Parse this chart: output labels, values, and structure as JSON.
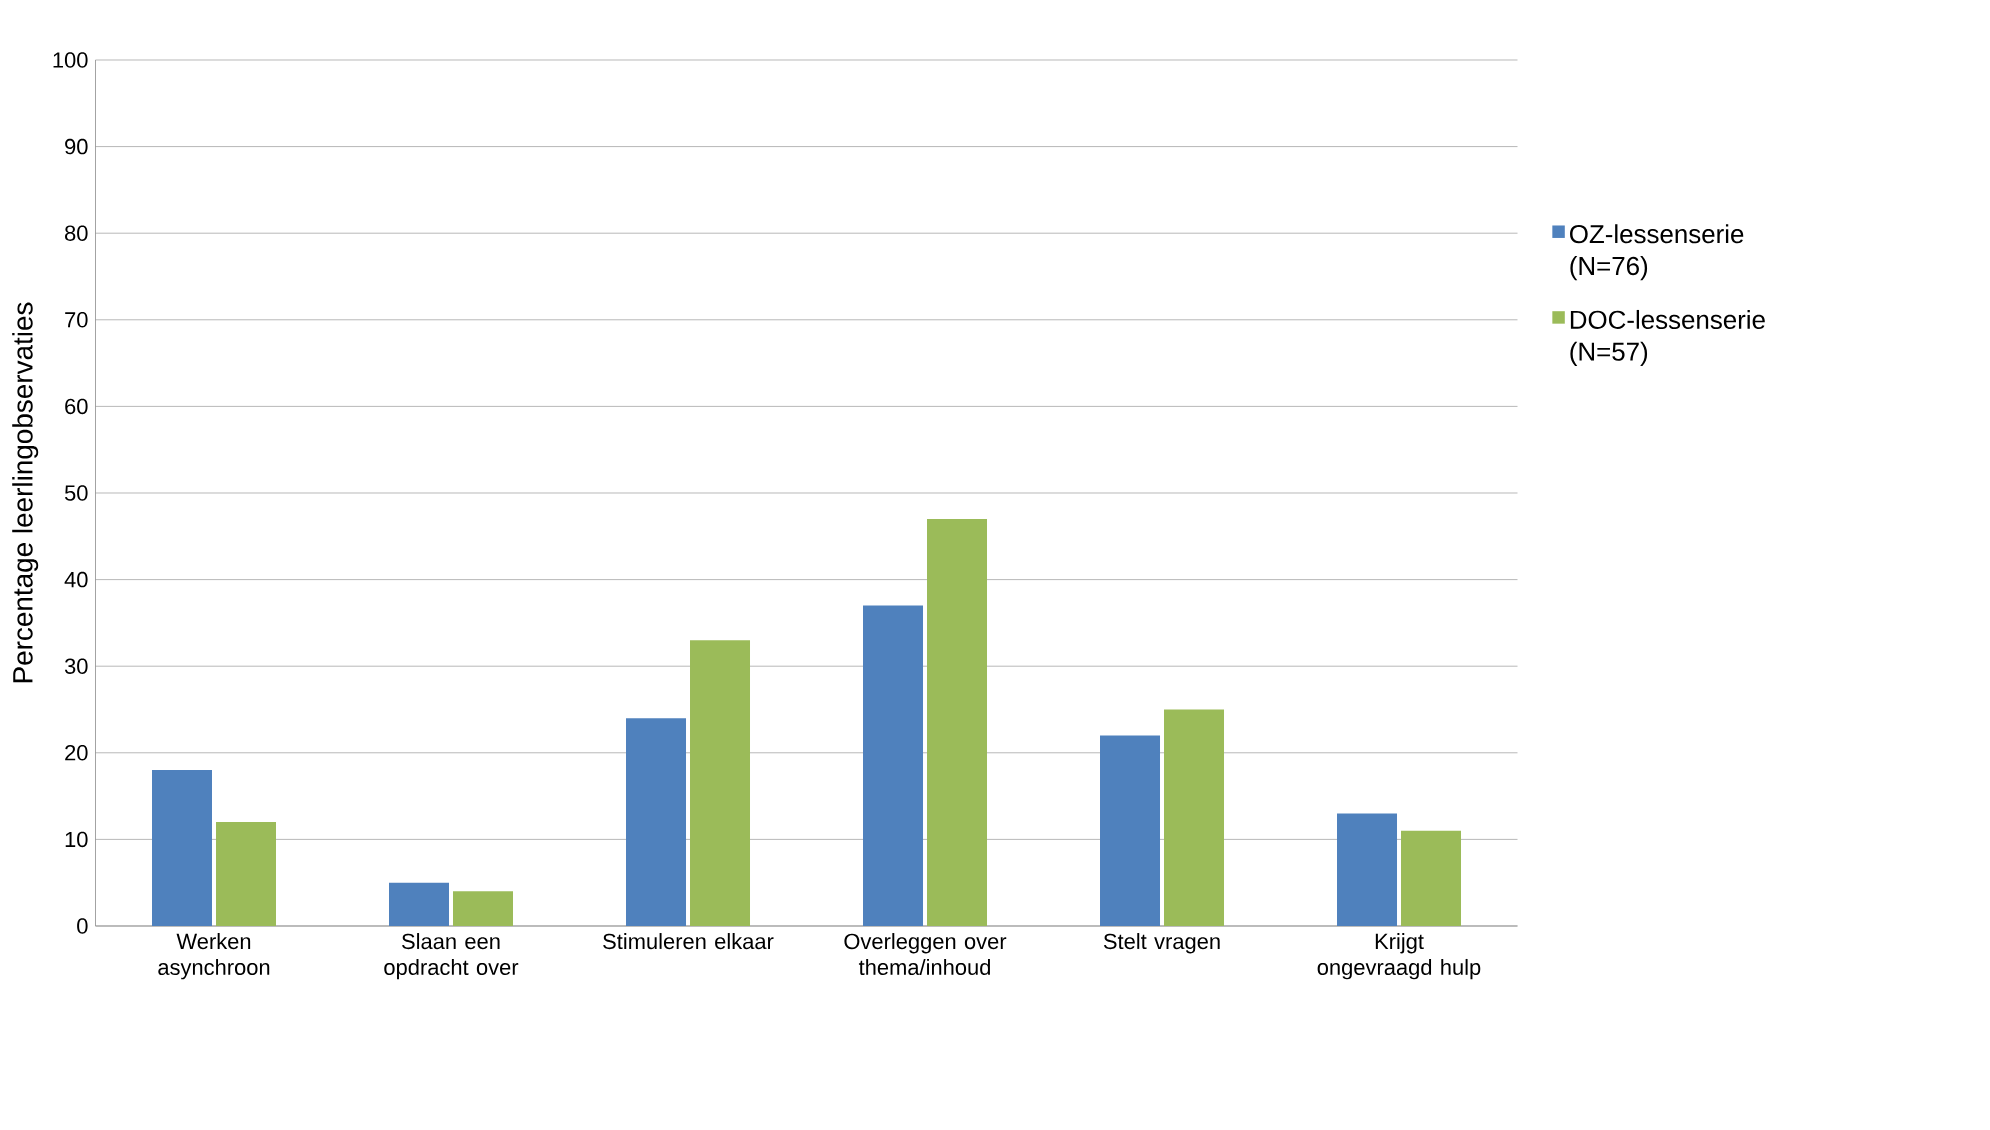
{
  "chart_data": {
    "type": "bar",
    "ylabel": "Percentage leerlingobservaties",
    "categories": [
      "Werken asynchroon",
      "Slaan een opdracht over",
      "Stimuleren elkaar",
      "Overleggen over thema/inhoud",
      "Stelt vragen",
      "Krijgt ongevraagd hulp"
    ],
    "series": [
      {
        "name": "OZ-lessenserie (N=76)",
        "color": "#4f81bd",
        "values": [
          18,
          5,
          24,
          37,
          22,
          13
        ]
      },
      {
        "name": "DOC-lessenserie (N=57)",
        "color": "#9bbb59",
        "values": [
          12,
          4,
          33,
          47,
          25,
          11
        ]
      }
    ],
    "ylim": [
      0,
      100
    ],
    "yticks": [
      0,
      10,
      20,
      30,
      40,
      50,
      60,
      70,
      80,
      90,
      100
    ],
    "grid": "y",
    "legend": "right"
  }
}
